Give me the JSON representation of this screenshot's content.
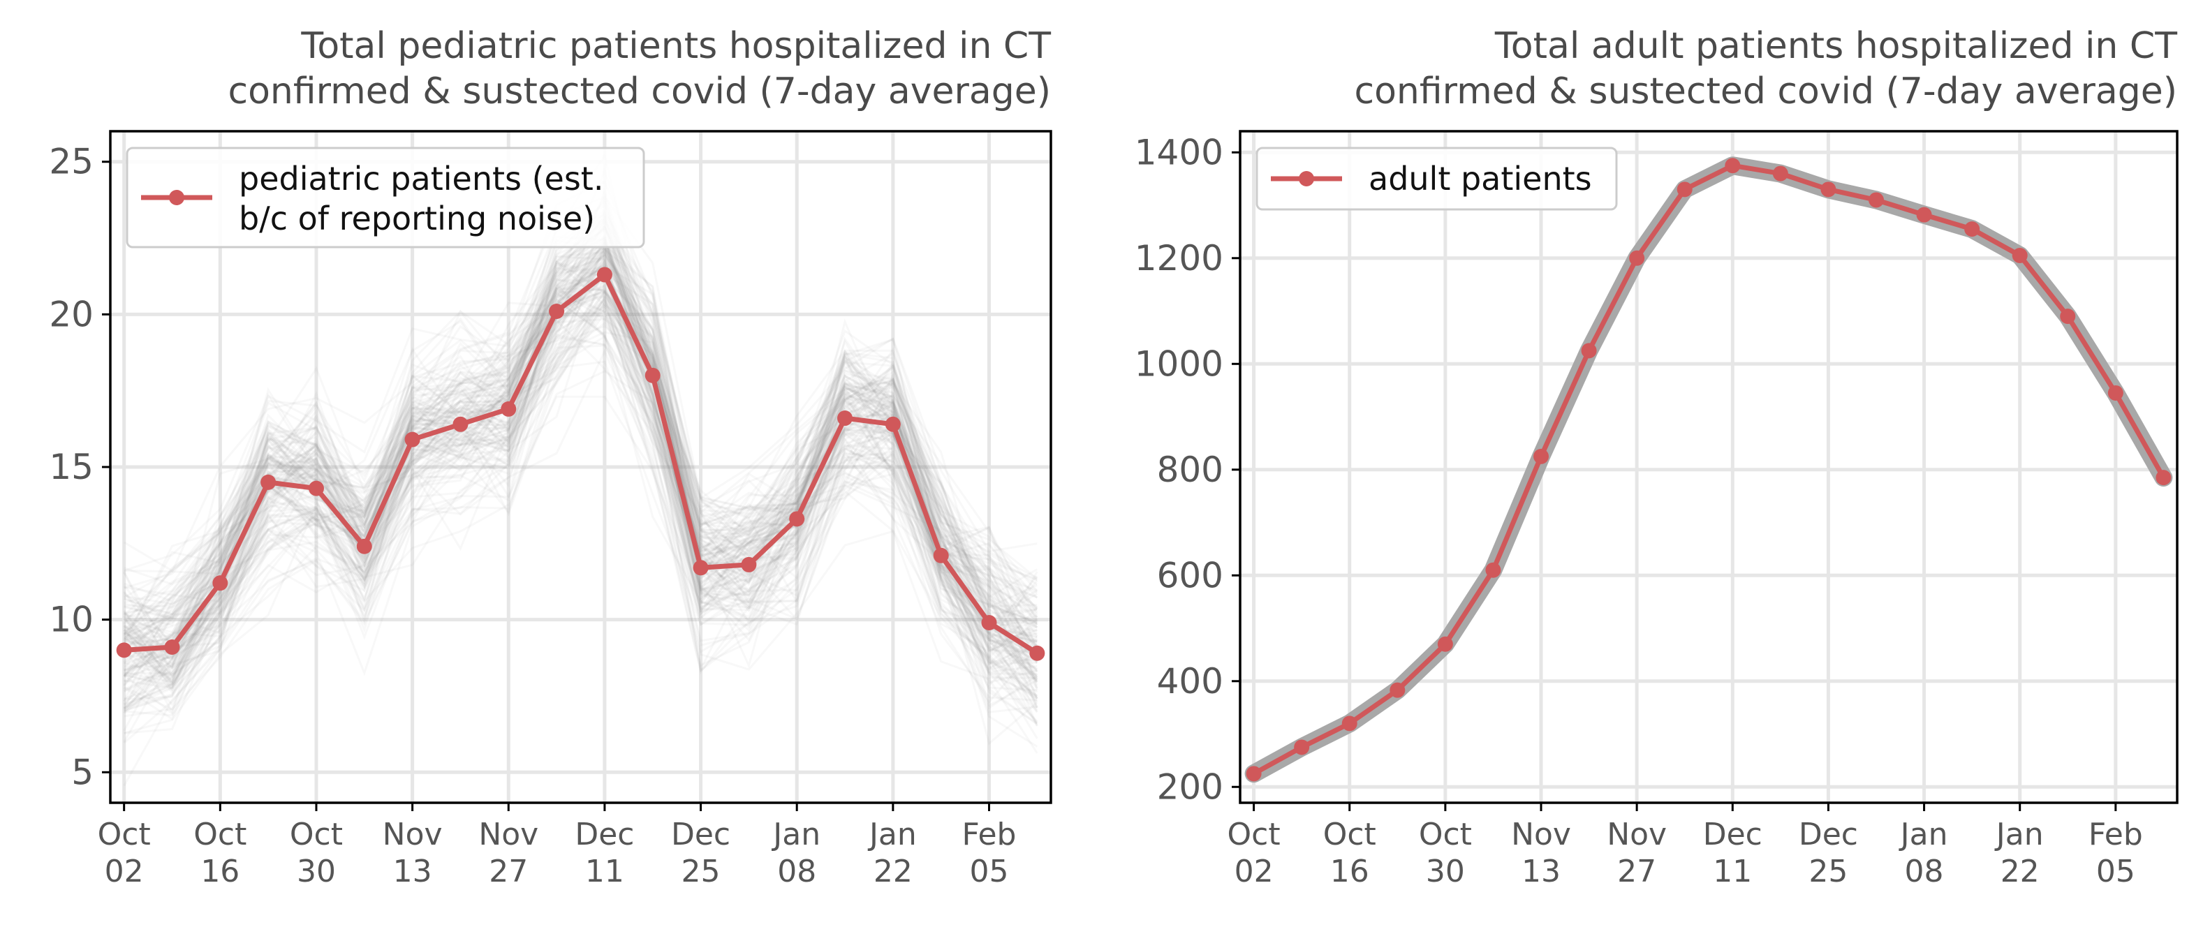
{
  "chart_data": [
    {
      "type": "line",
      "title": "Total pediatric patients hospitalized in CT",
      "subtitle": "confirmed & sustected covid (7-day average)",
      "xlabel": "",
      "ylabel": "",
      "x_tick_labels": [
        [
          "Oct",
          "02"
        ],
        [
          "Oct",
          "16"
        ],
        [
          "Oct",
          "30"
        ],
        [
          "Nov",
          "13"
        ],
        [
          "Nov",
          "27"
        ],
        [
          "Dec",
          "11"
        ],
        [
          "Dec",
          "25"
        ],
        [
          "Jan",
          "08"
        ],
        [
          "Jan",
          "22"
        ],
        [
          "Feb",
          "05"
        ]
      ],
      "x_tick_days": [
        0,
        14,
        28,
        42,
        56,
        70,
        84,
        98,
        112,
        126
      ],
      "yticks": [
        5,
        10,
        15,
        20,
        25
      ],
      "ylim": [
        4,
        26
      ],
      "grid": true,
      "legend_position": "upper-left",
      "series": [
        {
          "name": "pediatric patients (est.\nb/c of reporting noise)",
          "color": "#d0585a",
          "x_days": [
            0,
            7,
            14,
            21,
            28,
            35,
            42,
            49,
            56,
            63,
            70,
            77,
            84,
            91,
            98,
            105,
            112,
            119,
            126,
            133
          ],
          "values": [
            9.0,
            9.1,
            11.2,
            14.5,
            14.3,
            12.4,
            15.9,
            16.4,
            16.9,
            20.1,
            21.3,
            18.0,
            11.7,
            11.8,
            13.3,
            16.6,
            16.4,
            12.1,
            9.9,
            8.9
          ]
        }
      ],
      "uncertainty_band": {
        "style": "many faint gray simulated traces",
        "color": "#8a8a8a"
      }
    },
    {
      "type": "line",
      "title": "Total adult patients hospitalized in CT",
      "subtitle": "confirmed & sustected covid (7-day average)",
      "xlabel": "",
      "ylabel": "",
      "x_tick_labels": [
        [
          "Oct",
          "02"
        ],
        [
          "Oct",
          "16"
        ],
        [
          "Oct",
          "30"
        ],
        [
          "Nov",
          "13"
        ],
        [
          "Nov",
          "27"
        ],
        [
          "Dec",
          "11"
        ],
        [
          "Dec",
          "25"
        ],
        [
          "Jan",
          "08"
        ],
        [
          "Jan",
          "22"
        ],
        [
          "Feb",
          "05"
        ]
      ],
      "x_tick_days": [
        0,
        14,
        28,
        42,
        56,
        70,
        84,
        98,
        112,
        126
      ],
      "yticks": [
        200,
        400,
        600,
        800,
        1000,
        1200,
        1400
      ],
      "ylim": [
        170,
        1440
      ],
      "grid": true,
      "legend_position": "upper-left",
      "series": [
        {
          "name": "adult patients",
          "color": "#d0585a",
          "x_days": [
            0,
            7,
            14,
            21,
            28,
            35,
            42,
            49,
            56,
            63,
            70,
            77,
            84,
            91,
            98,
            105,
            112,
            119,
            126,
            133
          ],
          "values": [
            225,
            275,
            320,
            383,
            470,
            610,
            825,
            1025,
            1200,
            1330,
            1375,
            1360,
            1330,
            1310,
            1282,
            1255,
            1205,
            1090,
            945,
            785
          ]
        }
      ],
      "uncertainty_band": {
        "style": "gray band",
        "color": "#9a9a9a"
      }
    }
  ]
}
